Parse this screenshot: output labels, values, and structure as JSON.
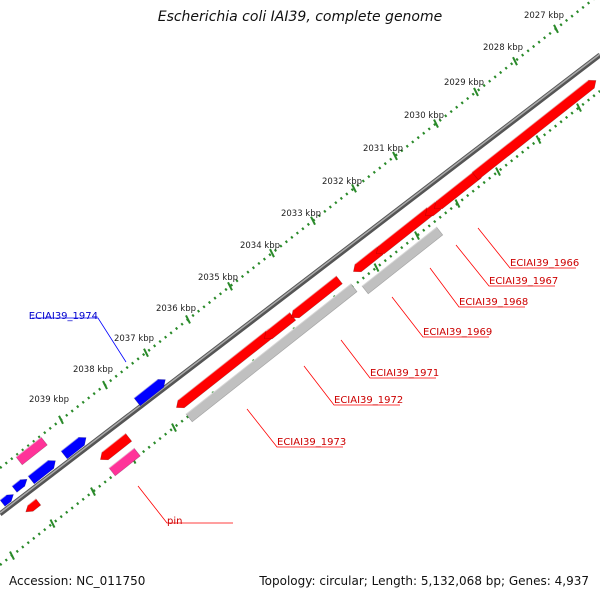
{
  "title": "Escherichia coli IAI39, complete genome",
  "footer": {
    "accession": "Accession: NC_011750",
    "summary": "Topology: circular; Length: 5,132,068 bp; Genes: 4,937"
  },
  "colors": {
    "forward_gene": "#ff0000",
    "reverse_gene": "#0000ff",
    "pseudo_gene": "#ff3399",
    "grey_gene": "#c0c0c0",
    "backbone": "#666666",
    "scale": "#2a8a2a",
    "red_label": "#cc0000",
    "blue_label": "#0000cc"
  },
  "scale_labels": [
    "2027 kbp",
    "2028 kbp",
    "2029 kbp",
    "2030 kbp",
    "2031 kbp",
    "2032 kbp",
    "2033 kbp",
    "2034 kbp",
    "2035 kbp",
    "2036 kbp",
    "2037 kbp",
    "2038 kbp",
    "2039 kbp"
  ],
  "gene_labels": [
    {
      "text": "ECIAI39_1966",
      "color": "red"
    },
    {
      "text": "ECIAI39_1967",
      "color": "red"
    },
    {
      "text": "ECIAI39_1968",
      "color": "red"
    },
    {
      "text": "ECIAI39_1969",
      "color": "red"
    },
    {
      "text": "ECIAI39_1971",
      "color": "red"
    },
    {
      "text": "ECIAI39_1972",
      "color": "red"
    },
    {
      "text": "ECIAI39_1973",
      "color": "red"
    },
    {
      "text": "pin",
      "color": "red"
    },
    {
      "text": "ECIAI39_1974",
      "color": "blue"
    }
  ]
}
